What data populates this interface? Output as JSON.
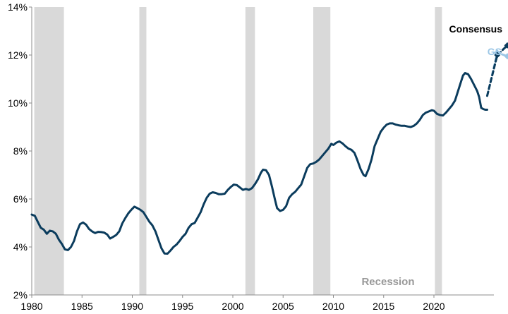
{
  "chart_data": {
    "type": "line",
    "title": "",
    "xlabel": "",
    "ylabel": "",
    "xlim": [
      1980,
      2024
    ],
    "ylim": [
      2,
      14
    ],
    "x_ticks": [
      1980,
      1985,
      1990,
      1995,
      2000,
      2005,
      2010,
      2015,
      2020
    ],
    "x_tick_labels": [
      "1980",
      "1985",
      "1990",
      "1995",
      "2000",
      "2005",
      "2010",
      "2015",
      "2020"
    ],
    "y_ticks": [
      2,
      4,
      6,
      8,
      10,
      12,
      14
    ],
    "y_tick_labels": [
      "2%",
      "4%",
      "6%",
      "8%",
      "10%",
      "12%",
      "14%"
    ],
    "grid": false,
    "recession_label": "Recession",
    "recessions": [
      {
        "start": 1980.25,
        "end": 1983.2
      },
      {
        "start": 1990.7,
        "end": 1991.4
      },
      {
        "start": 2001.25,
        "end": 2002.2
      },
      {
        "start": 2008.0,
        "end": 2009.7
      },
      {
        "start": 2020.1,
        "end": 2020.8
      }
    ],
    "series": [
      {
        "color": "#0b3c5d",
        "style": "solid",
        "points": [
          [
            1980.0,
            5.35
          ],
          [
            1980.3,
            5.3
          ],
          [
            1980.6,
            5.05
          ],
          [
            1980.9,
            4.8
          ],
          [
            1981.2,
            4.72
          ],
          [
            1981.5,
            4.55
          ],
          [
            1981.8,
            4.68
          ],
          [
            1982.1,
            4.65
          ],
          [
            1982.4,
            4.55
          ],
          [
            1982.7,
            4.3
          ],
          [
            1983.0,
            4.12
          ],
          [
            1983.3,
            3.9
          ],
          [
            1983.6,
            3.87
          ],
          [
            1983.9,
            4.0
          ],
          [
            1984.2,
            4.25
          ],
          [
            1984.5,
            4.65
          ],
          [
            1984.8,
            4.95
          ],
          [
            1985.1,
            5.02
          ],
          [
            1985.4,
            4.93
          ],
          [
            1985.7,
            4.75
          ],
          [
            1986.0,
            4.65
          ],
          [
            1986.3,
            4.58
          ],
          [
            1986.6,
            4.63
          ],
          [
            1986.9,
            4.62
          ],
          [
            1987.2,
            4.6
          ],
          [
            1987.5,
            4.52
          ],
          [
            1987.8,
            4.35
          ],
          [
            1988.1,
            4.42
          ],
          [
            1988.4,
            4.5
          ],
          [
            1988.7,
            4.65
          ],
          [
            1989.0,
            4.98
          ],
          [
            1989.3,
            5.2
          ],
          [
            1989.6,
            5.4
          ],
          [
            1989.9,
            5.55
          ],
          [
            1990.2,
            5.68
          ],
          [
            1990.5,
            5.62
          ],
          [
            1990.8,
            5.55
          ],
          [
            1991.1,
            5.45
          ],
          [
            1991.4,
            5.25
          ],
          [
            1991.7,
            5.05
          ],
          [
            1992.0,
            4.9
          ],
          [
            1992.3,
            4.65
          ],
          [
            1992.6,
            4.3
          ],
          [
            1992.9,
            3.95
          ],
          [
            1993.2,
            3.73
          ],
          [
            1993.5,
            3.72
          ],
          [
            1993.8,
            3.85
          ],
          [
            1994.1,
            4.0
          ],
          [
            1994.4,
            4.1
          ],
          [
            1994.7,
            4.25
          ],
          [
            1995.0,
            4.42
          ],
          [
            1995.3,
            4.55
          ],
          [
            1995.6,
            4.8
          ],
          [
            1995.9,
            4.95
          ],
          [
            1996.2,
            5.0
          ],
          [
            1996.5,
            5.22
          ],
          [
            1996.8,
            5.45
          ],
          [
            1997.1,
            5.78
          ],
          [
            1997.4,
            6.05
          ],
          [
            1997.7,
            6.22
          ],
          [
            1998.0,
            6.28
          ],
          [
            1998.3,
            6.25
          ],
          [
            1998.6,
            6.2
          ],
          [
            1998.9,
            6.2
          ],
          [
            1999.2,
            6.22
          ],
          [
            1999.5,
            6.38
          ],
          [
            1999.8,
            6.5
          ],
          [
            2000.1,
            6.6
          ],
          [
            2000.4,
            6.58
          ],
          [
            2000.7,
            6.48
          ],
          [
            2001.0,
            6.38
          ],
          [
            2001.3,
            6.42
          ],
          [
            2001.6,
            6.38
          ],
          [
            2001.9,
            6.45
          ],
          [
            2002.2,
            6.62
          ],
          [
            2002.5,
            6.82
          ],
          [
            2002.8,
            7.1
          ],
          [
            2003.0,
            7.22
          ],
          [
            2003.3,
            7.2
          ],
          [
            2003.6,
            7.0
          ],
          [
            2003.9,
            6.5
          ],
          [
            2004.2,
            5.95
          ],
          [
            2004.4,
            5.62
          ],
          [
            2004.7,
            5.5
          ],
          [
            2005.0,
            5.55
          ],
          [
            2005.3,
            5.7
          ],
          [
            2005.6,
            6.05
          ],
          [
            2005.9,
            6.2
          ],
          [
            2006.2,
            6.3
          ],
          [
            2006.5,
            6.45
          ],
          [
            2006.8,
            6.6
          ],
          [
            2007.1,
            6.95
          ],
          [
            2007.4,
            7.3
          ],
          [
            2007.7,
            7.45
          ],
          [
            2008.0,
            7.48
          ],
          [
            2008.3,
            7.55
          ],
          [
            2008.6,
            7.65
          ],
          [
            2008.9,
            7.8
          ],
          [
            2009.2,
            7.95
          ],
          [
            2009.5,
            8.1
          ],
          [
            2009.8,
            8.3
          ],
          [
            2010.0,
            8.25
          ],
          [
            2010.3,
            8.35
          ],
          [
            2010.6,
            8.4
          ],
          [
            2010.9,
            8.32
          ],
          [
            2011.2,
            8.2
          ],
          [
            2011.5,
            8.1
          ],
          [
            2011.8,
            8.05
          ],
          [
            2012.1,
            7.92
          ],
          [
            2012.4,
            7.6
          ],
          [
            2012.7,
            7.25
          ],
          [
            2013.0,
            7.0
          ],
          [
            2013.2,
            6.95
          ],
          [
            2013.5,
            7.25
          ],
          [
            2013.8,
            7.65
          ],
          [
            2014.1,
            8.2
          ],
          [
            2014.4,
            8.5
          ],
          [
            2014.7,
            8.8
          ],
          [
            2015.0,
            8.97
          ],
          [
            2015.3,
            9.1
          ],
          [
            2015.6,
            9.15
          ],
          [
            2015.9,
            9.15
          ],
          [
            2016.2,
            9.1
          ],
          [
            2016.5,
            9.07
          ],
          [
            2016.8,
            9.05
          ],
          [
            2017.1,
            9.05
          ],
          [
            2017.4,
            9.02
          ],
          [
            2017.7,
            9.0
          ],
          [
            2018.0,
            9.05
          ],
          [
            2018.3,
            9.15
          ],
          [
            2018.6,
            9.3
          ],
          [
            2018.9,
            9.5
          ],
          [
            2019.2,
            9.6
          ],
          [
            2019.5,
            9.65
          ],
          [
            2019.8,
            9.7
          ],
          [
            2020.0,
            9.68
          ],
          [
            2020.3,
            9.55
          ],
          [
            2020.6,
            9.5
          ],
          [
            2020.9,
            9.48
          ],
          [
            2021.2,
            9.6
          ],
          [
            2021.5,
            9.75
          ],
          [
            2021.8,
            9.9
          ],
          [
            2022.1,
            10.1
          ],
          [
            2022.4,
            10.5
          ],
          [
            2022.7,
            10.9
          ],
          [
            2022.9,
            11.15
          ],
          [
            2023.1,
            11.25
          ],
          [
            2023.4,
            11.2
          ],
          [
            2023.7,
            11.0
          ],
          [
            2024.0,
            10.75
          ],
          [
            2024.3,
            10.5
          ],
          [
            2024.5,
            10.25
          ],
          [
            2024.7,
            9.8
          ],
          [
            2024.9,
            9.75
          ],
          [
            2025.1,
            9.72
          ],
          [
            2025.3,
            9.72
          ]
        ]
      },
      {
        "name": "Consensus",
        "color": "#0b3c5d",
        "style": "dashed",
        "marker": "diamond",
        "points": [
          [
            2025.3,
            10.3
          ],
          [
            2026.3,
            12.0
          ],
          [
            2027.3,
            12.4
          ]
        ]
      },
      {
        "name": "GS",
        "color": "#9cc7e6",
        "style": "dashed",
        "marker": "diamond",
        "points": [
          [
            2025.3,
            10.3
          ],
          [
            2026.3,
            12.1
          ],
          [
            2027.3,
            11.95
          ]
        ]
      }
    ]
  }
}
